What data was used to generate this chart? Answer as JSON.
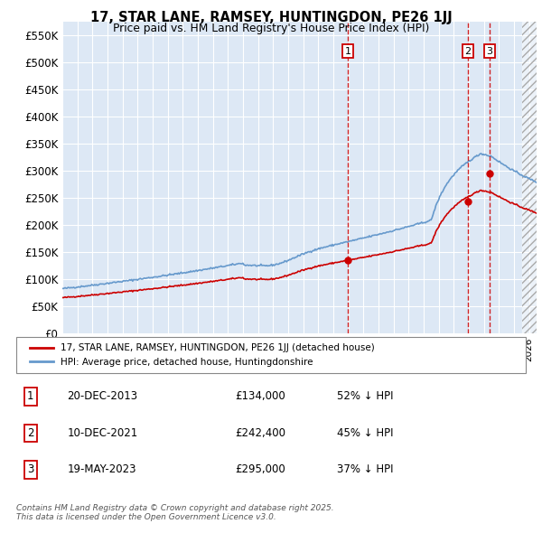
{
  "title": "17, STAR LANE, RAMSEY, HUNTINGDON, PE26 1JJ",
  "subtitle": "Price paid vs. HM Land Registry's House Price Index (HPI)",
  "ylim": [
    0,
    575000
  ],
  "yticks": [
    0,
    50000,
    100000,
    150000,
    200000,
    250000,
    300000,
    350000,
    400000,
    450000,
    500000,
    550000
  ],
  "ytick_labels": [
    "£0",
    "£50K",
    "£100K",
    "£150K",
    "£200K",
    "£250K",
    "£300K",
    "£350K",
    "£400K",
    "£450K",
    "£500K",
    "£550K"
  ],
  "hpi_color": "#6699cc",
  "sale_color": "#cc0000",
  "background_color": "#ffffff",
  "plot_bg_color": "#dde8f5",
  "grid_color": "#ffffff",
  "vline_color": "#cc0000",
  "legend_entries": [
    "17, STAR LANE, RAMSEY, HUNTINGDON, PE26 1JJ (detached house)",
    "HPI: Average price, detached house, Huntingdonshire"
  ],
  "sale_dates_num": [
    2013.97,
    2021.94,
    2023.38
  ],
  "sale_prices": [
    134000,
    242400,
    295000
  ],
  "table_data": [
    [
      "1",
      "20-DEC-2013",
      "£134,000",
      "52% ↓ HPI"
    ],
    [
      "2",
      "10-DEC-2021",
      "£242,400",
      "45% ↓ HPI"
    ],
    [
      "3",
      "19-MAY-2023",
      "£295,000",
      "37% ↓ HPI"
    ]
  ],
  "footer": "Contains HM Land Registry data © Crown copyright and database right 2025.\nThis data is licensed under the Open Government Licence v3.0.",
  "xmin": 1995.0,
  "xmax": 2026.5,
  "hatch_start": 2025.5
}
